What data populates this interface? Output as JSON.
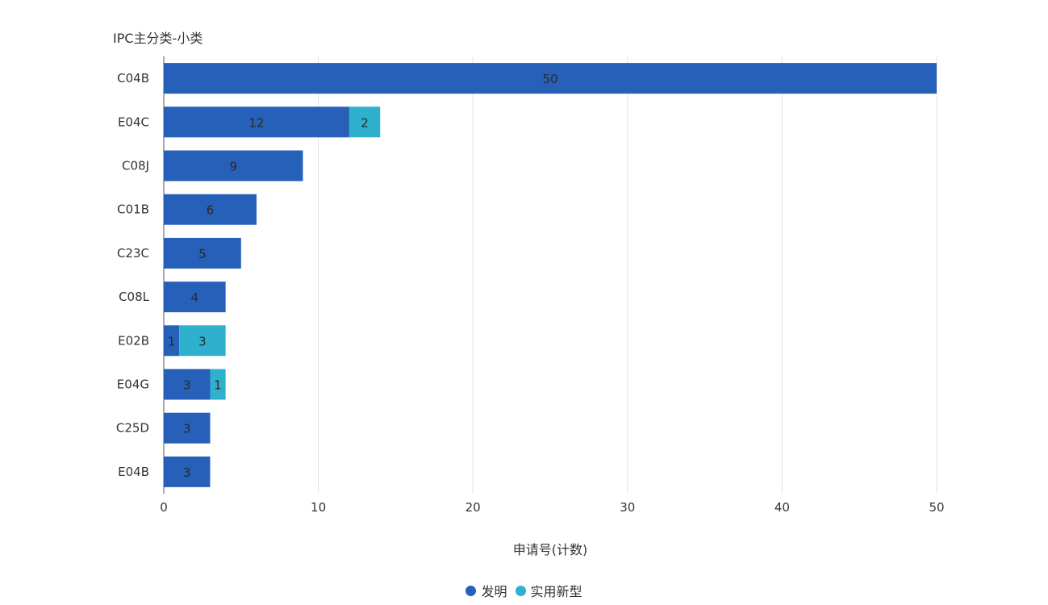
{
  "chart_data": {
    "type": "bar",
    "orientation": "horizontal",
    "stacked": true,
    "title": "",
    "ylabel": "IPC主分类-小类",
    "xlabel": "申请号(计数)",
    "categories": [
      "C04B",
      "E04C",
      "C08J",
      "C01B",
      "C23C",
      "C08L",
      "E02B",
      "E04G",
      "C25D",
      "E04B"
    ],
    "series": [
      {
        "name": "发明",
        "color": "#2660b8",
        "values": [
          50,
          12,
          9,
          6,
          5,
          4,
          1,
          3,
          3,
          3
        ]
      },
      {
        "name": "实用新型",
        "color": "#2fb0cc",
        "values": [
          0,
          2,
          0,
          0,
          0,
          0,
          3,
          1,
          0,
          0
        ]
      }
    ],
    "xlim": [
      0,
      50
    ],
    "xticks": [
      0,
      10,
      20,
      30,
      40,
      50
    ],
    "grid": true,
    "legend_position": "bottom-center"
  }
}
